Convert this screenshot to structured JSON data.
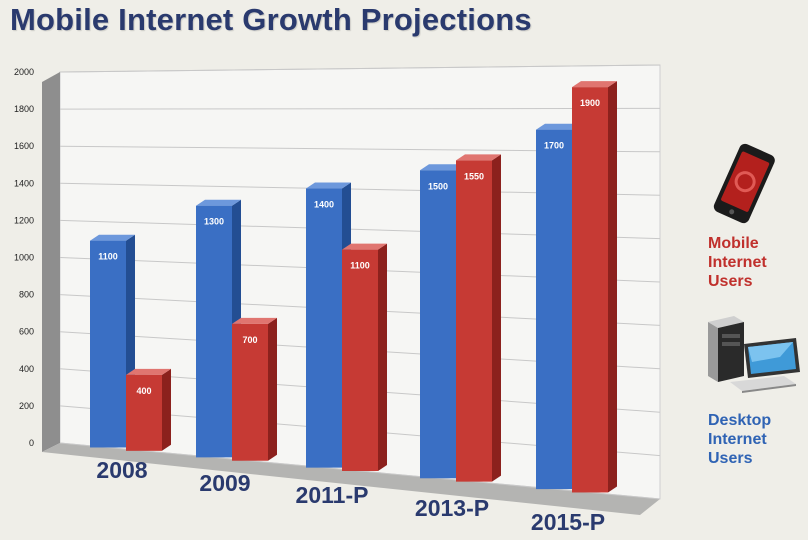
{
  "title": "Mobile Internet Growth Projections",
  "legend": {
    "mobile_line1": "Mobile",
    "mobile_line2": "Internet",
    "mobile_line3": "Users",
    "desktop_line1": "Desktop",
    "desktop_line2": "Internet",
    "desktop_line3": "Users",
    "mobile_icon": "smartphone-icon",
    "desktop_icon": "desktop-computer-icon"
  },
  "colors": {
    "desktop": "#3a6fc4",
    "mobile": "#c63a34",
    "title": "#2a3a6e"
  },
  "chart_data": {
    "type": "bar",
    "title": "Mobile Internet Growth Projections",
    "categories": [
      "2008",
      "2009",
      "2011-P",
      "2013-P",
      "2015-P"
    ],
    "series": [
      {
        "name": "Desktop Internet Users",
        "values": [
          1100,
          1300,
          1400,
          1500,
          1700
        ]
      },
      {
        "name": "Mobile Internet Users",
        "values": [
          400,
          700,
          1100,
          1550,
          1900
        ]
      }
    ],
    "value_labels": {
      "desktop": [
        "1100",
        "1300",
        "1400",
        "1500",
        "1700"
      ],
      "mobile": [
        "400",
        "700",
        "1100",
        "1550",
        "1900"
      ]
    },
    "yticks": [
      "0",
      "200",
      "400",
      "600",
      "800",
      "1000",
      "1200",
      "1400",
      "1600",
      "1800",
      "2000"
    ],
    "ylim": [
      0,
      2000
    ],
    "grid": true,
    "legend_position": "right",
    "style": "3d-perspective"
  }
}
